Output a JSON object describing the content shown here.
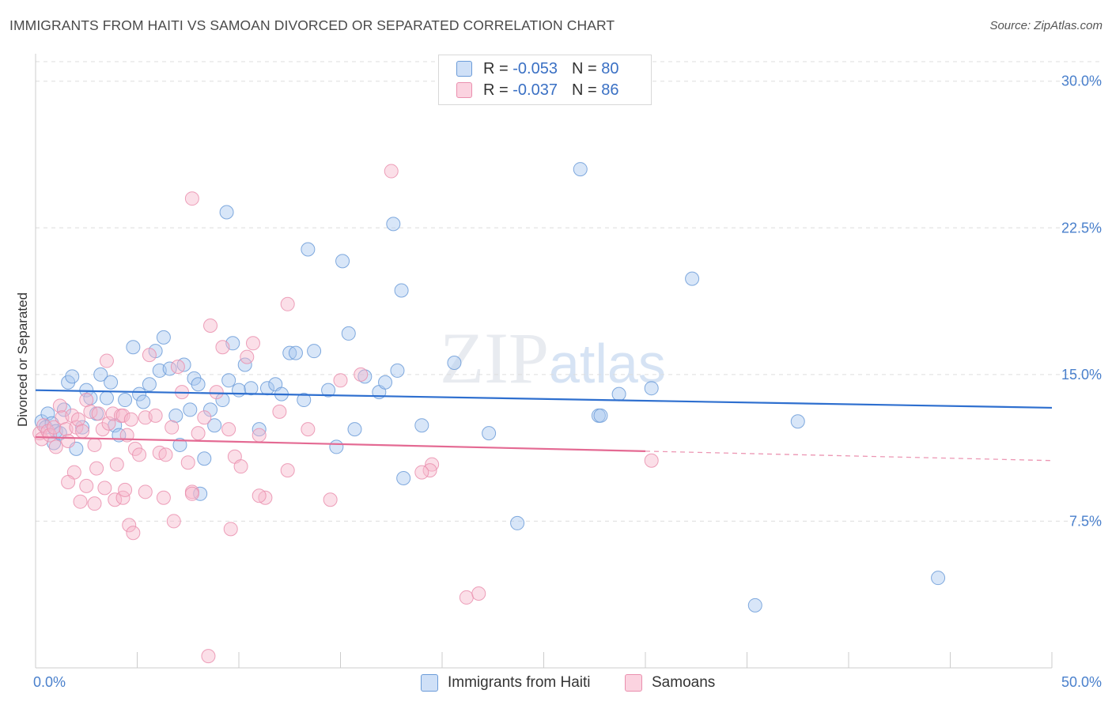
{
  "title": "IMMIGRANTS FROM HAITI VS SAMOAN DIVORCED OR SEPARATED CORRELATION CHART",
  "source": "Source: ZipAtlas.com",
  "watermark": {
    "zip": "ZIP",
    "atlas": "atlas"
  },
  "colors": {
    "haiti_fill": "#a8c8f0",
    "haiti_stroke": "#6b9bd8",
    "haiti_line": "#2e6fcf",
    "samoan_fill": "#f7b8cc",
    "samoan_stroke": "#ea8fae",
    "samoan_line": "#e46a93",
    "axis_text": "#4a80cc",
    "grid": "#dddddd"
  },
  "legend": {
    "r_label": "R =",
    "n_label": "N =",
    "haiti": {
      "r": "-0.053",
      "n": "80"
    },
    "samoan": {
      "r": "-0.037",
      "n": "86"
    }
  },
  "chart_data": {
    "type": "scatter",
    "title": "IMMIGRANTS FROM HAITI VS SAMOAN DIVORCED OR SEPARATED CORRELATION CHART",
    "xlabel": "",
    "ylabel": "Divorced or Separated",
    "xlim": [
      0,
      50
    ],
    "ylim": [
      0,
      31
    ],
    "x_tick_labels": [
      "0.0%",
      "50.0%"
    ],
    "y_ticks": [
      7.5,
      15.0,
      22.5,
      30.0
    ],
    "y_tick_labels": [
      "7.5%",
      "15.0%",
      "22.5%",
      "30.0%"
    ],
    "grid": true,
    "legend_position": "top-center",
    "series": [
      {
        "name": "Immigrants from Haiti",
        "color": "#a8c8f0",
        "trend": {
          "x": [
            0,
            50
          ],
          "y": [
            14.2,
            13.3
          ],
          "style": "solid"
        },
        "points": [
          [
            0.3,
            12.6
          ],
          [
            0.5,
            12.3
          ],
          [
            0.6,
            13.0
          ],
          [
            0.8,
            12.5
          ],
          [
            0.9,
            11.5
          ],
          [
            1.0,
            12.1
          ],
          [
            1.2,
            12.0
          ],
          [
            1.4,
            13.2
          ],
          [
            1.6,
            14.6
          ],
          [
            1.8,
            14.9
          ],
          [
            2.0,
            11.2
          ],
          [
            2.3,
            12.3
          ],
          [
            2.5,
            14.2
          ],
          [
            2.7,
            13.8
          ],
          [
            3.0,
            13.0
          ],
          [
            3.2,
            15.0
          ],
          [
            3.5,
            13.8
          ],
          [
            3.7,
            14.6
          ],
          [
            3.9,
            12.4
          ],
          [
            4.1,
            11.9
          ],
          [
            4.4,
            13.7
          ],
          [
            4.8,
            16.4
          ],
          [
            5.1,
            14.0
          ],
          [
            5.3,
            13.6
          ],
          [
            5.6,
            14.5
          ],
          [
            5.9,
            16.2
          ],
          [
            6.1,
            15.2
          ],
          [
            6.3,
            16.9
          ],
          [
            6.6,
            15.3
          ],
          [
            6.9,
            12.9
          ],
          [
            7.1,
            11.4
          ],
          [
            7.3,
            15.5
          ],
          [
            7.6,
            13.2
          ],
          [
            7.8,
            14.8
          ],
          [
            8.0,
            14.5
          ],
          [
            8.3,
            10.7
          ],
          [
            8.6,
            13.2
          ],
          [
            8.8,
            12.4
          ],
          [
            9.2,
            13.7
          ],
          [
            9.5,
            14.7
          ],
          [
            9.7,
            16.6
          ],
          [
            10.0,
            14.2
          ],
          [
            10.3,
            15.5
          ],
          [
            10.6,
            14.3
          ],
          [
            11.0,
            12.2
          ],
          [
            11.4,
            14.3
          ],
          [
            11.8,
            14.5
          ],
          [
            12.1,
            14.0
          ],
          [
            12.5,
            16.1
          ],
          [
            12.8,
            16.1
          ],
          [
            13.2,
            13.7
          ],
          [
            13.7,
            16.2
          ],
          [
            14.4,
            14.2
          ],
          [
            14.8,
            11.3
          ],
          [
            15.1,
            20.8
          ],
          [
            15.4,
            17.1
          ],
          [
            15.7,
            12.2
          ],
          [
            16.2,
            14.9
          ],
          [
            16.9,
            14.1
          ],
          [
            17.2,
            14.6
          ],
          [
            17.8,
            15.2
          ],
          [
            9.4,
            23.3
          ],
          [
            13.4,
            21.4
          ],
          [
            17.6,
            22.7
          ],
          [
            18.0,
            19.3
          ],
          [
            19.0,
            12.4
          ],
          [
            20.6,
            15.6
          ],
          [
            22.3,
            12.0
          ],
          [
            23.7,
            7.4
          ],
          [
            18.1,
            9.7
          ],
          [
            26.8,
            25.5
          ],
          [
            27.7,
            12.9
          ],
          [
            27.8,
            12.9
          ],
          [
            28.7,
            14.0
          ],
          [
            30.3,
            14.3
          ],
          [
            32.3,
            19.9
          ],
          [
            35.4,
            3.2
          ],
          [
            37.5,
            12.6
          ],
          [
            44.4,
            4.6
          ],
          [
            8.1,
            8.9
          ]
        ]
      },
      {
        "name": "Samoans",
        "color": "#f7b8cc",
        "trend": {
          "x": [
            0,
            50
          ],
          "y": [
            11.8,
            10.6
          ],
          "solid_until": 30
        },
        "points": [
          [
            0.2,
            12.0
          ],
          [
            0.3,
            11.7
          ],
          [
            0.4,
            12.4
          ],
          [
            0.6,
            12.1
          ],
          [
            0.7,
            11.9
          ],
          [
            0.9,
            12.3
          ],
          [
            1.0,
            11.3
          ],
          [
            1.2,
            13.4
          ],
          [
            1.3,
            12.8
          ],
          [
            1.5,
            12.2
          ],
          [
            1.6,
            11.6
          ],
          [
            1.8,
            12.9
          ],
          [
            2.0,
            12.3
          ],
          [
            2.1,
            12.7
          ],
          [
            2.3,
            12.1
          ],
          [
            2.5,
            13.7
          ],
          [
            2.7,
            13.1
          ],
          [
            2.9,
            11.4
          ],
          [
            3.1,
            13.0
          ],
          [
            3.3,
            12.2
          ],
          [
            3.5,
            15.7
          ],
          [
            3.6,
            12.5
          ],
          [
            3.8,
            13.0
          ],
          [
            4.0,
            10.4
          ],
          [
            4.2,
            12.9
          ],
          [
            4.3,
            12.9
          ],
          [
            4.5,
            11.9
          ],
          [
            4.7,
            12.7
          ],
          [
            4.9,
            11.2
          ],
          [
            5.1,
            10.9
          ],
          [
            5.4,
            12.8
          ],
          [
            5.6,
            16.0
          ],
          [
            5.9,
            12.9
          ],
          [
            6.1,
            11.0
          ],
          [
            6.4,
            10.9
          ],
          [
            6.7,
            12.3
          ],
          [
            7.0,
            15.4
          ],
          [
            7.2,
            14.1
          ],
          [
            7.5,
            10.5
          ],
          [
            7.7,
            9.0
          ],
          [
            8.0,
            12.0
          ],
          [
            8.3,
            12.8
          ],
          [
            8.6,
            17.5
          ],
          [
            8.9,
            14.1
          ],
          [
            9.2,
            16.4
          ],
          [
            9.5,
            12.2
          ],
          [
            9.8,
            10.8
          ],
          [
            10.1,
            10.3
          ],
          [
            10.4,
            15.9
          ],
          [
            10.7,
            16.6
          ],
          [
            11.0,
            11.9
          ],
          [
            11.3,
            8.7
          ],
          [
            12.0,
            13.1
          ],
          [
            12.4,
            10.1
          ],
          [
            13.4,
            12.2
          ],
          [
            14.5,
            8.6
          ],
          [
            15.0,
            14.7
          ],
          [
            1.9,
            10.0
          ],
          [
            2.2,
            8.5
          ],
          [
            2.5,
            9.3
          ],
          [
            2.9,
            8.4
          ],
          [
            3.4,
            9.2
          ],
          [
            3.9,
            8.6
          ],
          [
            4.3,
            8.7
          ],
          [
            4.6,
            7.3
          ],
          [
            4.8,
            6.9
          ],
          [
            5.4,
            9.0
          ],
          [
            6.3,
            8.7
          ],
          [
            6.8,
            7.5
          ],
          [
            7.7,
            8.9
          ],
          [
            9.6,
            7.1
          ],
          [
            11.0,
            8.8
          ],
          [
            1.6,
            9.5
          ],
          [
            3.0,
            10.2
          ],
          [
            4.4,
            9.1
          ],
          [
            7.7,
            24.0
          ],
          [
            12.4,
            18.6
          ],
          [
            17.5,
            25.4
          ],
          [
            16.0,
            15.0
          ],
          [
            19.5,
            10.4
          ],
          [
            19.4,
            10.1
          ],
          [
            19.0,
            10.0
          ],
          [
            21.2,
            3.6
          ],
          [
            21.8,
            3.8
          ],
          [
            30.3,
            10.6
          ],
          [
            8.5,
            0.6
          ]
        ]
      }
    ]
  },
  "bottom_legend": {
    "haiti": "Immigrants from Haiti",
    "samoan": "Samoans"
  }
}
